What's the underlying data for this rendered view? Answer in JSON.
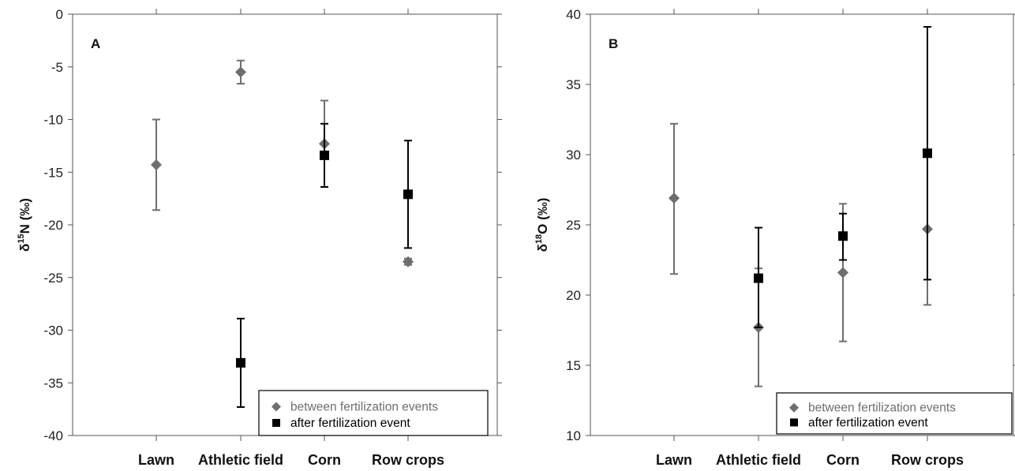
{
  "colors": {
    "between": "#6e6e6e",
    "after": "#000000",
    "frame": "#555555"
  },
  "chart_data": [
    {
      "type": "scatter",
      "panel_label": "A",
      "ylabel_main": "δ",
      "ylabel_sup": "15",
      "ylabel_rest": "N (‰)",
      "categories": [
        "Lawn",
        "Athletic field",
        "Corn",
        "Row crops"
      ],
      "ylim": [
        -40,
        0
      ],
      "yticks": [
        0,
        -5,
        -10,
        -15,
        -20,
        -25,
        -30,
        -35,
        -40
      ],
      "ytick_labels": [
        "0",
        "-5",
        "-10",
        "-15",
        "-20",
        "-25",
        "-30",
        "-35",
        "-40"
      ],
      "legend": {
        "position": "bottom-right",
        "entries": [
          "between fertilization events",
          "after fertilization event"
        ]
      },
      "series": [
        {
          "name": "between fertilization events",
          "marker": "diamond",
          "points": [
            {
              "category": "Lawn",
              "y": -14.3,
              "err_low": -18.6,
              "err_high": -10.0
            },
            {
              "category": "Athletic field",
              "y": -5.5,
              "err_low": -6.6,
              "err_high": -4.4
            },
            {
              "category": "Corn",
              "y": -12.3,
              "err_low": -16.4,
              "err_high": -8.2
            },
            {
              "category": "Row crops",
              "y": -23.5,
              "err_low": -23.8,
              "err_high": -23.2
            }
          ]
        },
        {
          "name": "after fertilization event",
          "marker": "square",
          "points": [
            {
              "category": "Athletic field",
              "y": -33.1,
              "err_low": -37.3,
              "err_high": -28.9
            },
            {
              "category": "Corn",
              "y": -13.4,
              "err_low": -16.4,
              "err_high": -10.4
            },
            {
              "category": "Row crops",
              "y": -17.1,
              "err_low": -22.2,
              "err_high": -12.0
            }
          ]
        }
      ]
    },
    {
      "type": "scatter",
      "panel_label": "B",
      "ylabel_main": "δ",
      "ylabel_sup": "18",
      "ylabel_rest": "O (‰)",
      "categories": [
        "Lawn",
        "Athletic field",
        "Corn",
        "Row crops"
      ],
      "ylim": [
        10,
        40
      ],
      "yticks": [
        10,
        15,
        20,
        25,
        30,
        35,
        40
      ],
      "ytick_labels": [
        "10",
        "15",
        "20",
        "25",
        "30",
        "35",
        "40"
      ],
      "legend": {
        "position": "bottom-right",
        "entries": [
          "between fertilization events",
          "after fertilization event"
        ]
      },
      "series": [
        {
          "name": "between fertilization events",
          "marker": "diamond",
          "points": [
            {
              "category": "Lawn",
              "y": 26.9,
              "err_low": 21.5,
              "err_high": 32.2
            },
            {
              "category": "Athletic field",
              "y": 17.7,
              "err_low": 13.5,
              "err_high": 21.9
            },
            {
              "category": "Corn",
              "y": 21.6,
              "err_low": 16.7,
              "err_high": 26.5
            },
            {
              "category": "Row crops",
              "y": 24.7,
              "err_low": 19.3,
              "err_high": 30.1
            }
          ]
        },
        {
          "name": "after fertilization event",
          "marker": "square",
          "points": [
            {
              "category": "Athletic field",
              "y": 21.2,
              "err_low": 17.7,
              "err_high": 24.8
            },
            {
              "category": "Corn",
              "y": 24.2,
              "err_low": 22.5,
              "err_high": 25.8
            },
            {
              "category": "Row crops",
              "y": 30.1,
              "err_low": 21.1,
              "err_high": 39.1
            }
          ]
        }
      ]
    }
  ]
}
